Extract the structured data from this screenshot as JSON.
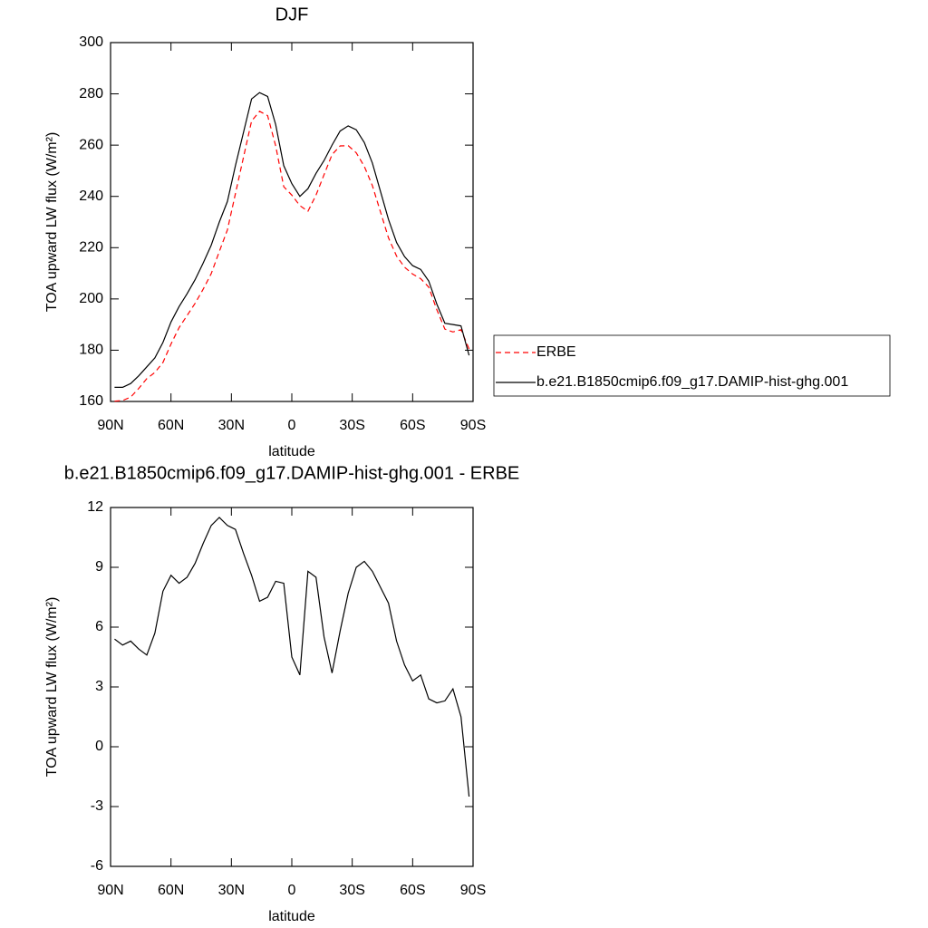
{
  "chart_data": [
    {
      "type": "line",
      "title": "DJF",
      "xlabel": "latitude",
      "ylabel": "TOA upward LW flux (W/m²)",
      "x": [
        88,
        84,
        80,
        76,
        72,
        68,
        64,
        60,
        56,
        52,
        48,
        44,
        40,
        36,
        32,
        28,
        24,
        20,
        16,
        12,
        8,
        4,
        0,
        -4,
        -8,
        -12,
        -16,
        -20,
        -24,
        -28,
        -32,
        -36,
        -40,
        -44,
        -48,
        -52,
        -56,
        -60,
        -64,
        -68,
        -72,
        -76,
        -80,
        -84,
        -88
      ],
      "series": [
        {
          "name": "ERBE",
          "color": "#ff0000",
          "line_style": "dashed",
          "values": [
            160.1,
            160.4,
            161.7,
            165.1,
            168.9,
            171.3,
            175.2,
            182.4,
            188.8,
            193.5,
            198.3,
            203.8,
            209.9,
            218.5,
            226.9,
            241.1,
            255.3,
            269.4,
            273.2,
            271.5,
            259.7,
            243.8,
            240.5,
            236.4,
            234.2,
            240.5,
            248.5,
            256.3,
            259.7,
            259.8,
            257,
            251.7,
            244.2,
            234,
            223.8,
            216.7,
            212.4,
            209.7,
            207.9,
            204.6,
            195.8,
            188.2,
            187.1,
            188,
            180.5
          ]
        },
        {
          "name": "b.e21.B1850cmip6.f09_g17.DAMIP-hist-ghg.001",
          "color": "#000000",
          "line_style": "solid",
          "values": [
            165.5,
            165.5,
            167,
            170,
            173.5,
            177,
            183,
            191,
            197,
            202,
            207.5,
            214,
            221,
            230,
            238,
            252,
            265,
            278,
            280.5,
            279,
            268,
            252,
            245,
            240,
            243,
            249,
            254,
            260,
            265.5,
            267.5,
            266,
            261,
            253,
            242,
            231,
            222,
            216.5,
            213,
            211.5,
            207,
            198,
            190.5,
            190,
            189.5,
            178
          ]
        }
      ],
      "xlim": [
        90,
        -90
      ],
      "xticks": [
        {
          "value": 90,
          "label": "90N"
        },
        {
          "value": 60,
          "label": "60N"
        },
        {
          "value": 30,
          "label": "30N"
        },
        0,
        {
          "value": -30,
          "label": "30S"
        },
        {
          "value": -60,
          "label": "60S"
        },
        {
          "value": -90,
          "label": "90S"
        }
      ],
      "ylim": [
        160,
        300
      ],
      "yticks": [
        160,
        180,
        200,
        220,
        240,
        260,
        280,
        300
      ],
      "legend": "right"
    },
    {
      "type": "line",
      "title": "b.e21.B1850cmip6.f09_g17.DAMIP-hist-ghg.001 - ERBE",
      "xlabel": "latitude",
      "ylabel": "TOA upward LW flux (W/m²)",
      "x": [
        88,
        84,
        80,
        76,
        72,
        68,
        64,
        60,
        56,
        52,
        48,
        44,
        40,
        36,
        32,
        28,
        24,
        20,
        16,
        12,
        8,
        4,
        0,
        -4,
        -8,
        -12,
        -16,
        -20,
        -24,
        -28,
        -32,
        -36,
        -40,
        -44,
        -48,
        -52,
        -56,
        -60,
        -64,
        -68,
        -72,
        -76,
        -80,
        -84,
        -88
      ],
      "series": [
        {
          "color": "#000000",
          "line_style": "solid",
          "values": [
            5.4,
            5.1,
            5.3,
            4.9,
            4.6,
            5.7,
            7.8,
            8.6,
            8.2,
            8.5,
            9.2,
            10.2,
            11.1,
            11.5,
            11.1,
            10.9,
            9.7,
            8.6,
            7.3,
            7.5,
            8.3,
            8.2,
            4.5,
            3.6,
            8.8,
            8.5,
            5.5,
            3.7,
            5.8,
            7.7,
            9,
            9.3,
            8.8,
            8,
            7.2,
            5.3,
            4.1,
            3.3,
            3.6,
            2.4,
            2.2,
            2.3,
            2.9,
            1.5,
            -2.5
          ]
        }
      ],
      "xlim": [
        90,
        -90
      ],
      "xticks": [
        {
          "value": 90,
          "label": "90N"
        },
        {
          "value": 60,
          "label": "60N"
        },
        {
          "value": 30,
          "label": "30N"
        },
        0,
        {
          "value": -30,
          "label": "30S"
        },
        {
          "value": -60,
          "label": "60S"
        },
        {
          "value": -90,
          "label": "90S"
        }
      ],
      "ylim": [
        -6,
        12
      ],
      "yticks": [
        -6,
        -3,
        0,
        3,
        6,
        9,
        12
      ]
    }
  ]
}
